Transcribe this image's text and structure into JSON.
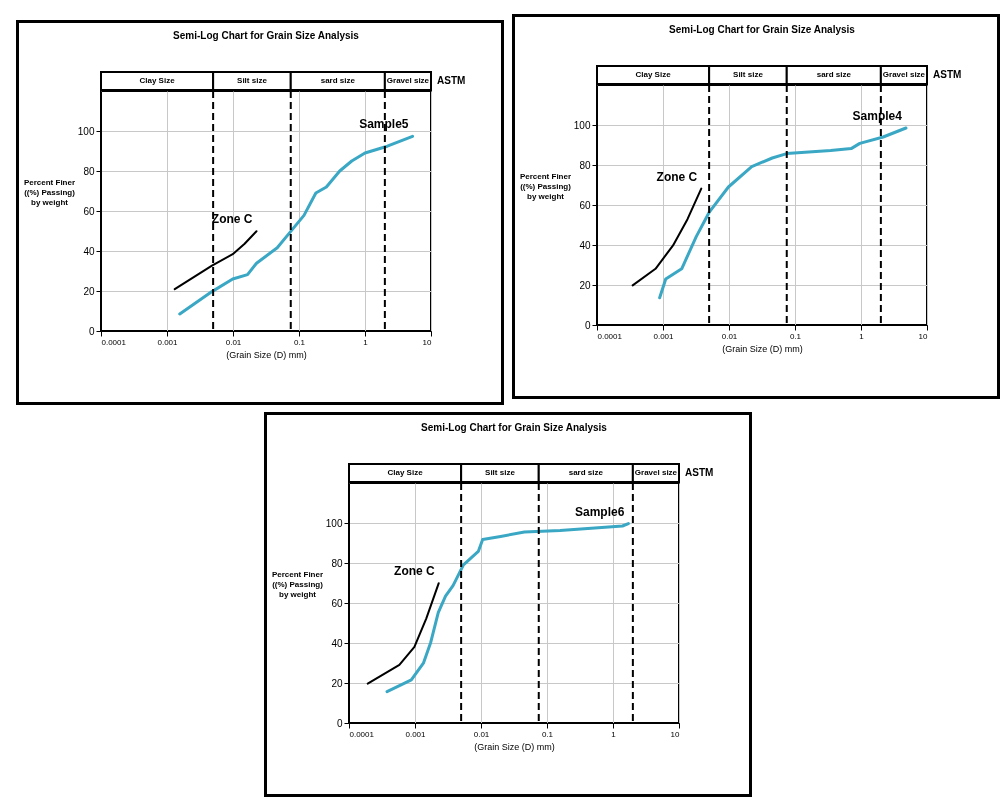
{
  "chart_data": [
    {
      "type": "line",
      "title": "Semi-Log Chart for Grain Size Analysis",
      "xlabel": "(Grain Size (D) mm)",
      "ylabel": "Percent Finer\n((%) Passing)\nby weight",
      "log": "x",
      "grid": true,
      "xlim": [
        0.0001,
        10
      ],
      "xticks": [
        0.0001,
        0.001,
        0.01,
        0.1,
        1,
        10
      ],
      "ylim": [
        0,
        120
      ],
      "yticks": [
        0,
        20,
        40,
        60,
        80,
        100
      ],
      "series": [
        {
          "name": "Zone C",
          "color": "#000000",
          "x": [
            0.00131,
            0.0048,
            0.0099,
            0.015,
            0.0227
          ],
          "values": [
            20.9,
            32.7,
            38.4,
            43.6,
            49.9
          ]
        },
        {
          "name": "Sample5",
          "color": "#3aa7c4",
          "x": [
            0.00156,
            0.0048,
            0.0099,
            0.0166,
            0.0227,
            0.0468,
            0.0708,
            0.119,
            0.18,
            0.26,
            0.414,
            0.63,
            1.0,
            2.18,
            5.25
          ],
          "values": [
            8.5,
            19.7,
            26,
            28.2,
            33.9,
            41.6,
            48.8,
            57.8,
            69,
            72,
            80,
            85,
            89,
            92.4,
            97.3
          ]
        }
      ],
      "ref_lines": [
        {
          "axis": "x",
          "value": 0.005,
          "line_style": "dashed"
        },
        {
          "axis": "x",
          "value": 0.075,
          "line_style": "dashed"
        },
        {
          "axis": "x",
          "value": 2,
          "line_style": "dashed"
        }
      ],
      "annotations": [
        "Clay Size",
        "Silt size",
        "sard size",
        "Gravel size",
        "ASTM"
      ]
    },
    {
      "type": "line",
      "title": "Semi-Log Chart for Grain Size Analysis",
      "xlabel": "(Grain Size (D) mm)",
      "ylabel": "Percent Finer\n((%) Passing)\nby weight",
      "log": "x",
      "grid": true,
      "xlim": [
        0.0001,
        10
      ],
      "xticks": [
        0.0001,
        0.001,
        0.01,
        0.1,
        1,
        10
      ],
      "ylim": [
        0,
        120
      ],
      "yticks": [
        0,
        20,
        40,
        60,
        80,
        100
      ],
      "series": [
        {
          "name": "Zone C",
          "color": "#000000",
          "x": [
            0.000347,
            0.00077,
            0.00142,
            0.00235,
            0.0038
          ],
          "values": [
            19.8,
            28.1,
            39.8,
            52.9,
            68.2
          ]
        },
        {
          "name": "Sample4",
          "color": "#3aa7c4",
          "x": [
            0.00089,
            0.0011,
            0.00192,
            0.00319,
            0.00506,
            0.0098,
            0.0221,
            0.0452,
            0.075,
            0.347,
            0.71,
            0.96,
            2.17,
            4.8
          ],
          "values": [
            13.6,
            23,
            28.1,
            44.2,
            56.6,
            69,
            79.2,
            83.5,
            85.7,
            87.2,
            88.2,
            90.8,
            94,
            98.5
          ]
        }
      ],
      "ref_lines": [
        {
          "axis": "x",
          "value": 0.005,
          "line_style": "dashed"
        },
        {
          "axis": "x",
          "value": 0.075,
          "line_style": "dashed"
        },
        {
          "axis": "x",
          "value": 2,
          "line_style": "dashed"
        }
      ],
      "annotations": [
        "Clay Size",
        "Silt size",
        "sard size",
        "Gravel size",
        "ASTM"
      ]
    },
    {
      "type": "line",
      "title": "Semi-Log Chart for Grain Size Analysis",
      "xlabel": "(Grain Size (D) mm)",
      "ylabel": "Percent Finer\n((%) Passing)\nby weight",
      "log": "x",
      "grid": true,
      "xlim": [
        0.0001,
        10
      ],
      "xticks": [
        0.0001,
        0.001,
        0.01,
        0.1,
        1,
        10
      ],
      "ylim": [
        0,
        120
      ],
      "yticks": [
        0,
        20,
        40,
        60,
        80,
        100
      ],
      "series": [
        {
          "name": "Zone C",
          "color": "#000000",
          "x": [
            0.000192,
            0.00058,
            0.00098,
            0.00148,
            0.00229
          ],
          "values": [
            19.7,
            29.1,
            38.1,
            52.2,
            69.9
          ]
        },
        {
          "name": "Sample6",
          "color": "#3aa7c4",
          "x": [
            0.000377,
            0.00088,
            0.00134,
            0.00173,
            0.00225,
            0.0029,
            0.00377,
            0.00542,
            0.0091,
            0.0106,
            0.0198,
            0.0455,
            0.158,
            1.39,
            1.71
          ],
          "values": [
            15.7,
            21.6,
            29.9,
            40.3,
            55.2,
            63.4,
            68.7,
            79.1,
            85.8,
            91.8,
            93.3,
            95.5,
            96.3,
            98.5,
            99.7
          ]
        }
      ],
      "ref_lines": [
        {
          "axis": "x",
          "value": 0.005,
          "line_style": "dashed"
        },
        {
          "axis": "x",
          "value": 0.075,
          "line_style": "dashed"
        },
        {
          "axis": "x",
          "value": 2,
          "line_style": "dashed"
        }
      ],
      "annotations": [
        "Clay Size",
        "Silt size",
        "sard size",
        "Gravel size",
        "ASTM"
      ]
    }
  ]
}
